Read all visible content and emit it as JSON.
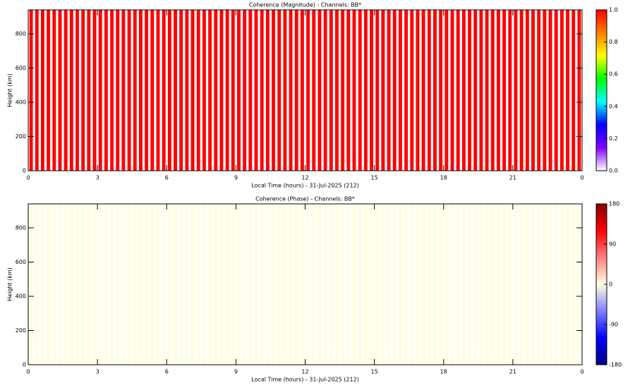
{
  "chart_data": [
    {
      "type": "heatmap",
      "title": "Coherence (Magnitude) - Channels: BB*",
      "xlabel": "Local Time (hours) - 31-Jul-2025 (212)",
      "ylabel": "Height (km)",
      "x": [
        0.125,
        0.375,
        0.625,
        0.875,
        1.125,
        1.375,
        1.625,
        1.875,
        2.125,
        2.375,
        2.625,
        2.875,
        3.125,
        3.375,
        3.625,
        3.875,
        4.125,
        4.375,
        4.625,
        4.875,
        5.125,
        5.375,
        5.625,
        5.875,
        6.125,
        6.375,
        6.625,
        6.875,
        7.125,
        7.375,
        7.625,
        7.875,
        8.125,
        8.375,
        8.625,
        8.875,
        9.125,
        9.375,
        9.625,
        9.875,
        10.125,
        10.375,
        10.625,
        10.875,
        11.125,
        11.375,
        11.625,
        11.875,
        12.125,
        12.375,
        12.625,
        12.875,
        13.125,
        13.375,
        13.625,
        13.875,
        14.125,
        14.375,
        14.625,
        14.875,
        15.125,
        15.375,
        15.625,
        15.875,
        16.125,
        16.375,
        16.625,
        16.875,
        17.125,
        17.375,
        17.625,
        17.875,
        18.125,
        18.375,
        18.625,
        18.875,
        19.125,
        19.375,
        19.625,
        19.875,
        20.125,
        20.375,
        20.625,
        20.875,
        21.125,
        21.375,
        21.625,
        21.875,
        22.125,
        22.375,
        22.625,
        22.875,
        23.125,
        23.375,
        23.625,
        23.875
      ],
      "values": [
        1,
        1,
        1,
        1,
        1,
        1,
        1,
        1,
        1,
        1,
        1,
        1,
        1,
        1,
        1,
        1,
        1,
        1,
        1,
        1,
        1,
        1,
        1,
        1,
        1,
        1,
        1,
        1,
        1,
        1,
        1,
        1,
        1,
        1,
        1,
        1,
        1,
        1,
        1,
        1,
        1,
        1,
        1,
        1,
        1,
        1,
        1,
        1,
        1,
        1,
        1,
        1,
        1,
        1,
        1,
        1,
        1,
        1,
        1,
        1,
        1,
        1,
        1,
        1,
        1,
        1,
        1,
        1,
        1,
        1,
        1,
        1,
        1,
        1,
        1,
        1,
        1,
        1,
        1,
        1,
        1,
        1,
        1,
        1,
        1,
        1,
        1,
        1,
        1,
        1,
        1,
        1,
        1,
        1,
        1,
        1
      ],
      "xlim": [
        0,
        24
      ],
      "ylim": [
        0,
        940
      ],
      "xticks": [
        0,
        3,
        6,
        9,
        12,
        15,
        18,
        21,
        {
          "value": 24,
          "label": "0"
        }
      ],
      "yticks": [
        0,
        200,
        400,
        600,
        800
      ],
      "colorbar": {
        "lim": [
          0,
          1
        ],
        "ticks": [
          {
            "value": 0,
            "label": "0.0"
          },
          {
            "value": 0.2,
            "label": "0.2"
          },
          {
            "value": 0.4,
            "label": "0.4"
          },
          {
            "value": 0.6,
            "label": "0.6"
          },
          {
            "value": 0.8,
            "label": "0.8"
          },
          {
            "value": 1,
            "label": "1.0"
          }
        ],
        "colors": [
          "#ffffff",
          "#8000ff",
          "#0000ff",
          "#00ffff",
          "#00ff00",
          "#ffff00",
          "#ff8000",
          "#ff0000"
        ]
      }
    },
    {
      "type": "heatmap",
      "title": "Coherence (Phase) - Channels: BB*",
      "xlabel": "Local Time (hours) - 31-Jul-2025 (212)",
      "ylabel": "Height (km)",
      "x": [
        0.125,
        0.375,
        0.625,
        0.875,
        1.125,
        1.375,
        1.625,
        1.875,
        2.125,
        2.375,
        2.625,
        2.875,
        3.125,
        3.375,
        3.625,
        3.875,
        4.125,
        4.375,
        4.625,
        4.875,
        5.125,
        5.375,
        5.625,
        5.875,
        6.125,
        6.375,
        6.625,
        6.875,
        7.125,
        7.375,
        7.625,
        7.875,
        8.125,
        8.375,
        8.625,
        8.875,
        9.125,
        9.375,
        9.625,
        9.875,
        10.125,
        10.375,
        10.625,
        10.875,
        11.125,
        11.375,
        11.625,
        11.875,
        12.125,
        12.375,
        12.625,
        12.875,
        13.125,
        13.375,
        13.625,
        13.875,
        14.125,
        14.375,
        14.625,
        14.875,
        15.125,
        15.375,
        15.625,
        15.875,
        16.125,
        16.375,
        16.625,
        16.875,
        17.125,
        17.375,
        17.625,
        17.875,
        18.125,
        18.375,
        18.625,
        18.875,
        19.125,
        19.375,
        19.625,
        19.875,
        20.125,
        20.375,
        20.625,
        20.875,
        21.125,
        21.375,
        21.625,
        21.875,
        22.125,
        22.375,
        22.625,
        22.875,
        23.125,
        23.375,
        23.625,
        23.875
      ],
      "values": [
        0,
        0,
        0,
        0,
        0,
        0,
        0,
        0,
        0,
        0,
        0,
        0,
        0,
        0,
        0,
        0,
        0,
        0,
        0,
        0,
        0,
        0,
        0,
        0,
        0,
        0,
        0,
        0,
        0,
        0,
        0,
        0,
        0,
        0,
        0,
        0,
        0,
        0,
        0,
        0,
        0,
        0,
        0,
        0,
        0,
        0,
        0,
        0,
        0,
        0,
        0,
        0,
        0,
        0,
        0,
        0,
        0,
        0,
        0,
        0,
        0,
        0,
        0,
        0,
        0,
        0,
        0,
        0,
        0,
        0,
        0,
        0,
        0,
        0,
        0,
        0,
        0,
        0,
        0,
        0,
        0,
        0,
        0,
        0,
        0,
        0,
        0,
        0,
        0,
        0,
        0,
        0,
        0,
        0,
        0,
        0
      ],
      "xlim": [
        0,
        24
      ],
      "ylim": [
        0,
        940
      ],
      "xticks": [
        0,
        3,
        6,
        9,
        12,
        15,
        18,
        21,
        {
          "value": 24,
          "label": "0"
        }
      ],
      "yticks": [
        0,
        200,
        400,
        600,
        800
      ],
      "colorbar": {
        "lim": [
          -180,
          180
        ],
        "ticks": [
          -180,
          -90,
          0,
          90,
          180
        ],
        "colors": [
          "#000080",
          "#0000ff",
          "#8080ff",
          "#ffffe0",
          "#ff8080",
          "#ff0000",
          "#800000"
        ]
      }
    }
  ]
}
